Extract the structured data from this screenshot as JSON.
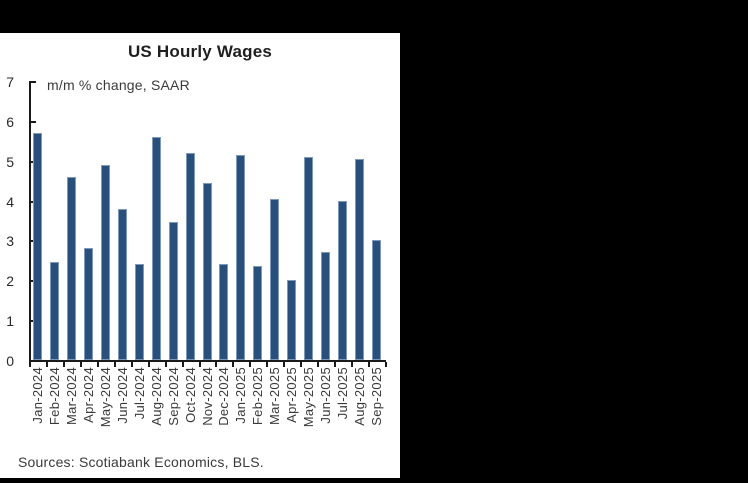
{
  "window": {
    "background_color": "#000000",
    "panel_color": "#ffffff"
  },
  "chart": {
    "title": "US Hourly Wages",
    "subtitle": "m/m % change, SAAR",
    "source": "Sources: Scotiabank Economics, BLS."
  },
  "chart_data": {
    "type": "bar",
    "title": "US Hourly Wages",
    "subtitle": "m/m % change, SAAR",
    "source": "Sources: Scotiabank Economics, BLS.",
    "categories": [
      "Jan-2024",
      "Feb-2024",
      "Mar-2024",
      "Apr-2024",
      "May-2024",
      "Jun-2024",
      "Jul-2024",
      "Aug-2024",
      "Sep-2024",
      "Oct-2024",
      "Nov-2024",
      "Dec-2024",
      "Jan-2025",
      "Feb-2025",
      "Mar-2025",
      "Apr-2025",
      "May-2025",
      "Jun-2025",
      "Jul-2025",
      "Aug-2025",
      "Sep-2025"
    ],
    "values": [
      5.7,
      2.45,
      4.6,
      2.8,
      4.9,
      3.8,
      2.4,
      5.6,
      3.45,
      5.2,
      4.45,
      2.4,
      5.15,
      2.35,
      4.05,
      2.0,
      5.1,
      2.7,
      4.0,
      5.05,
      3.0
    ],
    "xlabel": "",
    "ylabel": "",
    "ylim": [
      0,
      7
    ],
    "yticks": [
      0,
      1,
      2,
      3,
      4,
      5,
      6,
      7
    ],
    "grid": false,
    "legend_position": "none",
    "bar_color": "#29507B",
    "bar_edge_color": "#7f99ba",
    "axis_color": "#1a1a1a"
  }
}
